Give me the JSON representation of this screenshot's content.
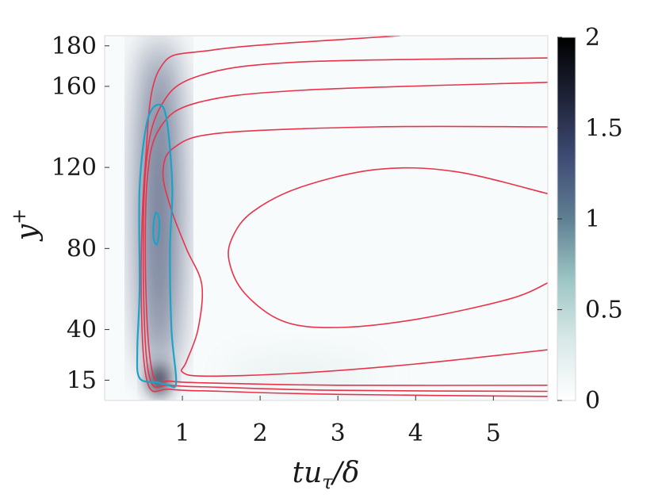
{
  "chart_data": {
    "type": "heatmap",
    "title": "",
    "xlabel": {
      "main": "tu",
      "sub": "τ",
      "tail": "/δ"
    },
    "ylabel": {
      "main": "y",
      "sup": "+"
    },
    "x_ticks": [
      1,
      2,
      3,
      4,
      5
    ],
    "y_ticks": [
      15,
      40,
      80,
      120,
      160,
      180
    ],
    "xlim": [
      0,
      5.7
    ],
    "ylim": [
      5,
      185
    ],
    "colorbar": {
      "ticks": [
        0,
        0.5,
        1,
        1.5,
        2
      ],
      "labels": [
        "0",
        "0.5",
        "1",
        "1.5",
        "2"
      ],
      "range": [
        0,
        2
      ]
    },
    "colormap": [
      "#ffffff",
      "#d8e9e8",
      "#9cc5c4",
      "#5f7f93",
      "#3f4c76",
      "#1f2338",
      "#000000"
    ],
    "contour_colors": {
      "red_lines": "#e8334a",
      "cyan_lines": "#1aa3c7"
    },
    "heatmap_features": [
      {
        "label": "primary ridge",
        "x": 0.7,
        "y_range": [
          15,
          185
        ],
        "peak_value": 1.4
      },
      {
        "label": "near-wall peak",
        "x": 0.7,
        "y": 15,
        "peak_value": 1.6
      },
      {
        "label": "wall band",
        "x_range": [
          1.5,
          3.5
        ],
        "y": 18,
        "peak_value": 0.2
      }
    ],
    "red_contours": [
      [
        [
          5.7,
          7
        ],
        [
          3,
          8
        ],
        [
          1.5,
          9.5
        ],
        [
          0.85,
          10.5
        ],
        [
          0.55,
          14
        ],
        [
          0.47,
          60
        ],
        [
          0.52,
          120
        ],
        [
          0.7,
          168
        ],
        [
          1.4,
          178
        ],
        [
          3.8,
          185
        ]
      ],
      [
        [
          5.7,
          9.5
        ],
        [
          3,
          10
        ],
        [
          1.5,
          11.5
        ],
        [
          0.85,
          12.5
        ],
        [
          0.58,
          16
        ],
        [
          0.5,
          60
        ],
        [
          0.53,
          120
        ],
        [
          0.72,
          150
        ],
        [
          1.2,
          165
        ],
        [
          2.5,
          172
        ],
        [
          5.7,
          174
        ]
      ],
      [
        [
          5.7,
          12.5
        ],
        [
          3,
          12.5
        ],
        [
          1.5,
          13.5
        ],
        [
          0.85,
          14.5
        ],
        [
          0.62,
          18
        ],
        [
          0.53,
          60
        ],
        [
          0.55,
          115
        ],
        [
          0.72,
          140
        ],
        [
          1.2,
          152
        ],
        [
          2.5,
          158
        ],
        [
          5.7,
          162
        ]
      ],
      [
        [
          5.7,
          30
        ],
        [
          4,
          23
        ],
        [
          2.5,
          18.5
        ],
        [
          1.3,
          17
        ],
        [
          1.0,
          19
        ],
        [
          1.05,
          24
        ],
        [
          1.2,
          40
        ],
        [
          1.25,
          62
        ],
        [
          1.05,
          80
        ],
        [
          0.85,
          100
        ],
        [
          0.75,
          118
        ],
        [
          0.9,
          130
        ],
        [
          1.5,
          137
        ],
        [
          3.5,
          140
        ],
        [
          5.7,
          140
        ]
      ],
      [
        [
          5.7,
          63
        ],
        [
          5.2,
          55
        ],
        [
          4,
          45
        ],
        [
          3,
          41
        ],
        [
          2.3,
          44
        ],
        [
          1.8,
          58
        ],
        [
          1.6,
          74
        ],
        [
          1.65,
          86
        ],
        [
          1.9,
          98
        ],
        [
          2.5,
          110
        ],
        [
          3.5,
          119
        ],
        [
          4.5,
          118
        ],
        [
          5.7,
          107
        ]
      ]
    ],
    "cyan_contours": [
      [
        [
          0.68,
          14
        ],
        [
          0.82,
          12.5
        ],
        [
          0.92,
          14
        ],
        [
          0.86,
          40
        ],
        [
          0.84,
          80
        ],
        [
          0.87,
          110
        ],
        [
          0.8,
          143
        ],
        [
          0.7,
          151
        ],
        [
          0.55,
          143
        ],
        [
          0.45,
          110
        ],
        [
          0.45,
          60
        ],
        [
          0.42,
          30
        ],
        [
          0.45,
          16
        ],
        [
          0.68,
          14
        ]
      ],
      [
        [
          0.66,
          98
        ],
        [
          0.7,
          95
        ],
        [
          0.7,
          88
        ],
        [
          0.67,
          82
        ],
        [
          0.63,
          85
        ],
        [
          0.63,
          93
        ],
        [
          0.66,
          98
        ]
      ]
    ]
  }
}
